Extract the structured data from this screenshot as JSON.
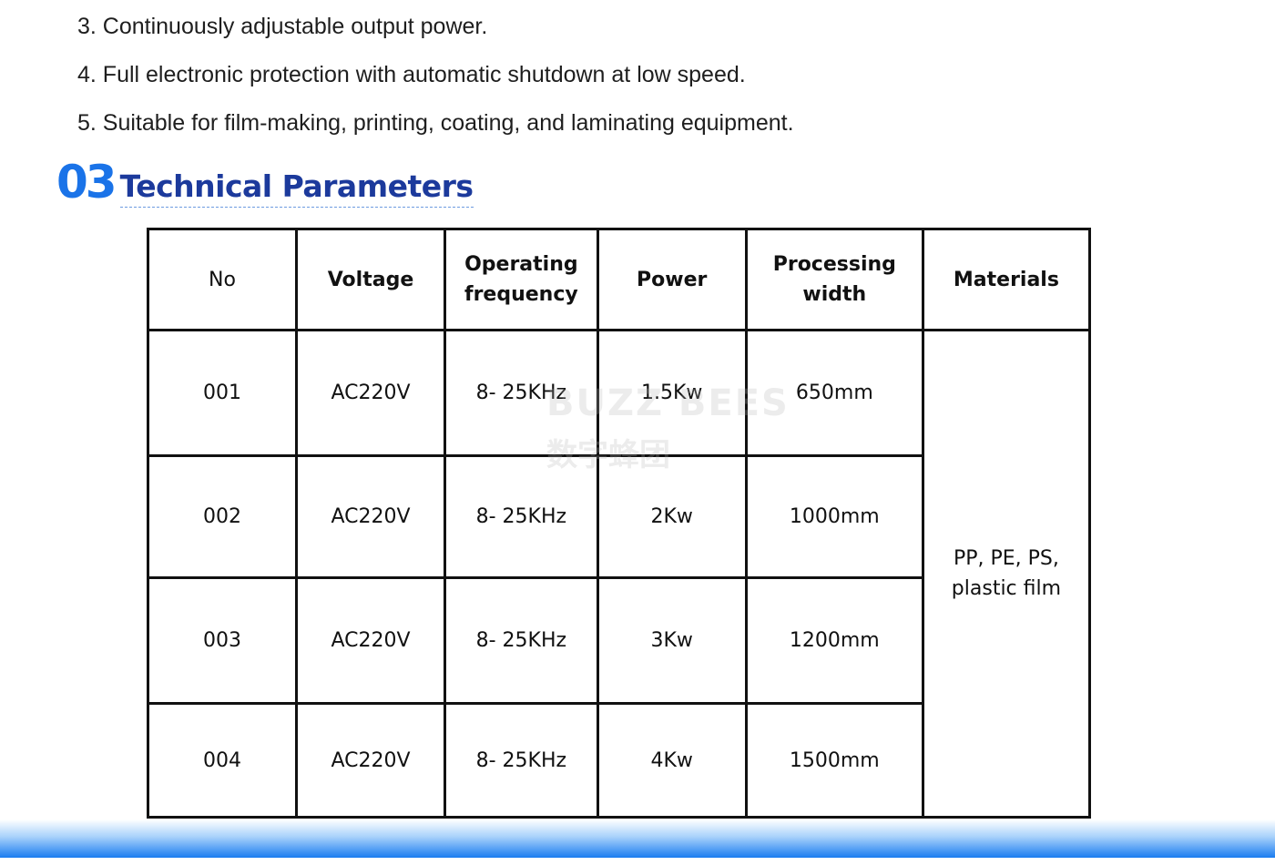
{
  "features": [
    "3. Continuously adjustable output power.",
    "4. Full electronic protection with automatic shutdown at low speed.",
    "5. Suitable for film-making, printing, coating, and laminating equipment."
  ],
  "section": {
    "number": "03",
    "title": "Technical Parameters"
  },
  "table": {
    "headers": [
      "No",
      "Voltage",
      "Operating frequency",
      "Power",
      "Processing width",
      "Materials"
    ],
    "rows": [
      [
        "001",
        "AC220V",
        "8- 25KHz",
        "1.5Kw",
        "650mm"
      ],
      [
        "002",
        "AC220V",
        "8- 25KHz",
        "2Kw",
        "1000mm"
      ],
      [
        "003",
        "AC220V",
        "8- 25KHz",
        "3Kw",
        "1200mm"
      ],
      [
        "004",
        "AC220V",
        "8- 25KHz",
        "4Kw",
        "1500mm"
      ]
    ],
    "materials": "PP, PE, PS, plastic film"
  },
  "watermark": {
    "line1": "BUZZ BEES",
    "line2": "数字蜂团"
  },
  "colors": {
    "accent": "#1a73e8",
    "title": "#1c3a9c"
  }
}
